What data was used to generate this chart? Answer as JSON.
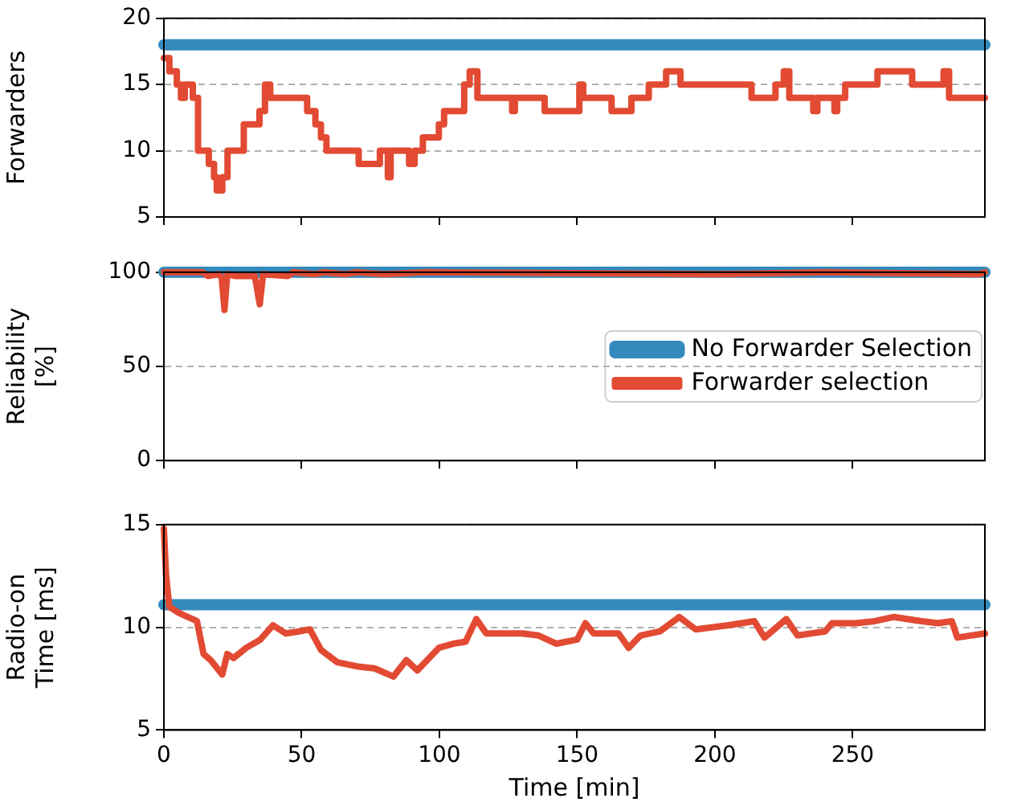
{
  "chart_data": [
    {
      "type": "line",
      "ylabel": "Forwarders",
      "xlim": [
        0,
        298
      ],
      "xticks": [
        0,
        50,
        100,
        150,
        200,
        250
      ],
      "ylim": [
        5,
        20
      ],
      "yticks": [
        5,
        10,
        15,
        20
      ],
      "grid": "y",
      "tick_labels": "y",
      "legend": false,
      "series": [
        {
          "color": "#348abd",
          "x": [
            0,
            298
          ],
          "values": [
            18,
            18
          ]
        },
        {
          "type": "step",
          "color": "#e24a33",
          "x": [
            0,
            2,
            4.7,
            6.2,
            7.6,
            10.5,
            12.4,
            16.3,
            18.2,
            19.2,
            21.2,
            23.1,
            29,
            34.7,
            36.7,
            38.6,
            52,
            55,
            57,
            59,
            70.7,
            78.4,
            81.3,
            82.3,
            89,
            91,
            94,
            99.8,
            101.7,
            109,
            111,
            113.8,
            126.4,
            127.4,
            138.2,
            150.8,
            152.2,
            162.5,
            169.7,
            176,
            182.3,
            187.5,
            213.3,
            222,
            225,
            227,
            235.7,
            237.2,
            243.4,
            244.4,
            247.3,
            259,
            271.6,
            283,
            285,
            298
          ],
          "values": [
            17,
            16,
            15,
            14,
            15,
            14,
            10,
            9,
            8,
            7,
            8,
            10,
            12,
            13,
            15,
            14,
            13,
            12,
            11,
            10,
            9,
            10,
            8,
            10,
            9,
            10,
            11,
            12,
            13,
            15,
            16,
            14,
            13,
            14,
            13,
            15,
            14,
            13,
            14,
            15,
            16,
            15,
            14,
            15,
            16,
            14,
            13,
            14,
            13,
            14,
            15,
            16,
            15,
            16,
            14,
            14
          ]
        }
      ]
    },
    {
      "type": "line",
      "ylabel": "Reliability\n[%]",
      "xlim": [
        0,
        298
      ],
      "xticks": [
        0,
        50,
        100,
        150,
        200,
        250
      ],
      "ylim": [
        0,
        100
      ],
      "yticks": [
        0,
        50,
        100
      ],
      "grid": "y",
      "tick_labels": "y",
      "legend": "right",
      "series": [
        {
          "name": "No Forwarder Selection",
          "color": "#348abd",
          "x": [
            0,
            298
          ],
          "values": [
            100,
            100
          ]
        },
        {
          "name": "Forwarder selection",
          "color": "#e24a33",
          "x": [
            0,
            14,
            16,
            20,
            21,
            22,
            23,
            26,
            33,
            34.8,
            36,
            45,
            47,
            55,
            58,
            66,
            70,
            80,
            95,
            200,
            240,
            296,
            298
          ],
          "values": [
            100,
            100,
            98,
            99,
            97,
            80,
            99,
            98,
            98,
            83,
            99,
            98,
            100,
            99,
            100,
            99,
            100,
            99,
            100,
            99,
            100,
            99,
            100
          ]
        }
      ]
    },
    {
      "type": "line",
      "xlabel": "Time [min]",
      "ylabel": "Radio-on\nTime [ms]",
      "xlim": [
        0,
        298
      ],
      "xticks": [
        0,
        50,
        100,
        150,
        200,
        250
      ],
      "ylim": [
        5,
        15
      ],
      "yticks": [
        5,
        10,
        15
      ],
      "grid": "y",
      "legend": false,
      "series": [
        {
          "color": "#348abd",
          "x": [
            0,
            298
          ],
          "values": [
            11.1,
            11.1
          ]
        },
        {
          "color": "#e24a33",
          "x": [
            0,
            0.8,
            2,
            5.4,
            12,
            14.4,
            17,
            21.2,
            23,
            25.3,
            29.9,
            35,
            39.6,
            44.3,
            49,
            53,
            57,
            62.9,
            70,
            76.5,
            83.3,
            88,
            92,
            99.8,
            105,
            109.5,
            113.4,
            117,
            130,
            136,
            142.5,
            150,
            153,
            156,
            165,
            168.7,
            173,
            180,
            187.1,
            193,
            205,
            214.3,
            218,
            225.9,
            230,
            240,
            242.5,
            251.2,
            258,
            264.8,
            275,
            281,
            286,
            288,
            298
          ],
          "values": [
            14.8,
            12.5,
            11,
            10.7,
            10.3,
            8.7,
            8.4,
            7.7,
            8.7,
            8.5,
            9,
            9.4,
            10.1,
            9.7,
            9.8,
            9.9,
            8.9,
            8.3,
            8.1,
            8,
            7.6,
            8.4,
            7.9,
            9,
            9.2,
            9.3,
            10.4,
            9.7,
            9.7,
            9.6,
            9.2,
            9.4,
            10.2,
            9.7,
            9.7,
            9,
            9.6,
            9.8,
            10.5,
            9.9,
            10.1,
            10.3,
            9.5,
            10.4,
            9.6,
            9.8,
            10.2,
            10.2,
            10.3,
            10.5,
            10.3,
            10.2,
            10.3,
            9.5,
            9.7
          ]
        }
      ]
    }
  ]
}
